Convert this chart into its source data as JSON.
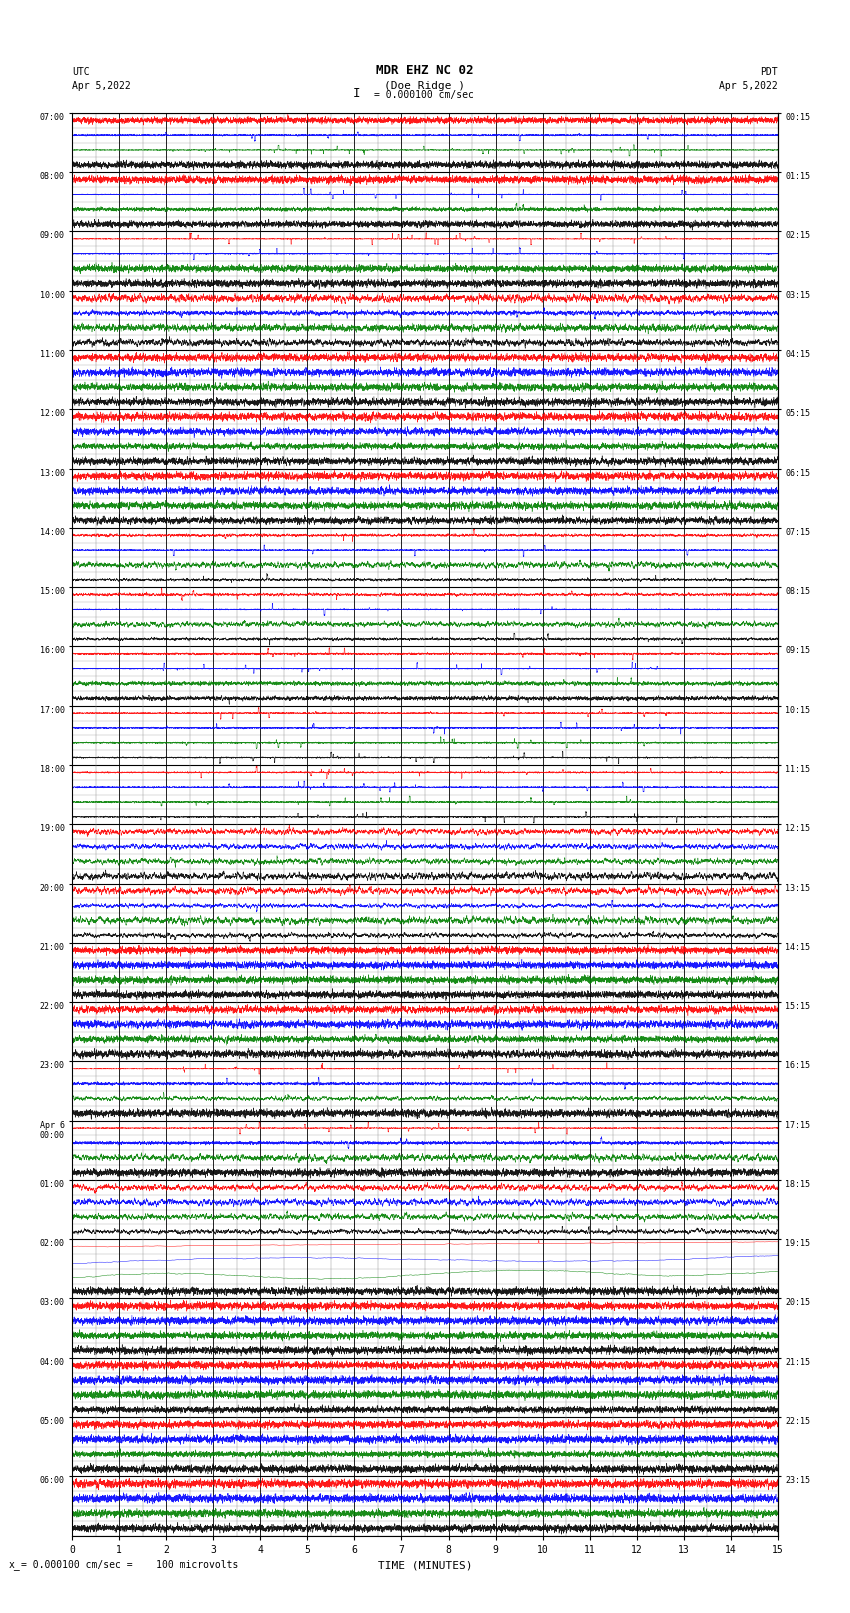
{
  "title_line1": "MDR EHZ NC 02",
  "title_line2": "(Doe Ridge )",
  "scale_label": "= 0.000100 cm/sec",
  "left_label_utc": "UTC",
  "left_date": "Apr 5,2022",
  "right_label_pdt": "PDT",
  "right_date": "Apr 5,2022",
  "bottom_label": "TIME (MINUTES)",
  "bottom_note": "= 0.000100 cm/sec =    100 microvolts",
  "left_times": [
    "07:00",
    "08:00",
    "09:00",
    "10:00",
    "11:00",
    "12:00",
    "13:00",
    "14:00",
    "15:00",
    "16:00",
    "17:00",
    "18:00",
    "19:00",
    "20:00",
    "21:00",
    "22:00",
    "23:00",
    "Apr 6\n00:00",
    "01:00",
    "02:00",
    "03:00",
    "04:00",
    "05:00",
    "06:00"
  ],
  "right_times": [
    "00:15",
    "01:15",
    "02:15",
    "03:15",
    "04:15",
    "05:15",
    "06:15",
    "07:15",
    "08:15",
    "09:15",
    "10:15",
    "11:15",
    "12:15",
    "13:15",
    "14:15",
    "15:15",
    "16:15",
    "17:15",
    "18:15",
    "19:15",
    "20:15",
    "21:15",
    "22:15",
    "23:15"
  ],
  "n_rows": 24,
  "n_minutes": 15,
  "background_color": "#ffffff",
  "grid_major_color": "#000000",
  "grid_minor_color": "#888888",
  "trace_colors": [
    "black",
    "#008000",
    "blue",
    "red"
  ],
  "fig_width": 8.5,
  "fig_height": 16.13
}
